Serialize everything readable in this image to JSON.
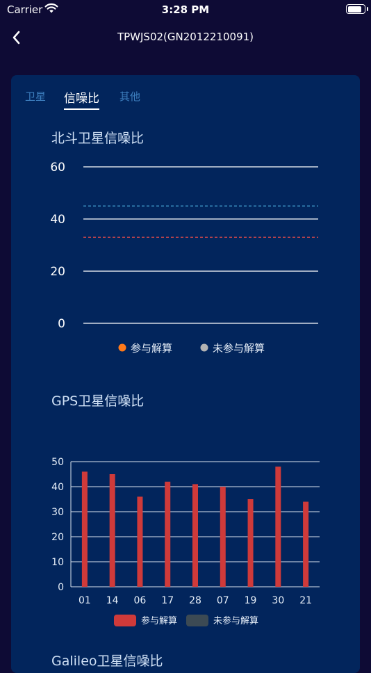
{
  "status_bar": {
    "carrier": "Carrier",
    "time": "3:28 PM",
    "battery_level": 0.9
  },
  "nav": {
    "title": "TPWJS02(GN2012210091)"
  },
  "tabs": [
    {
      "label": "卫星",
      "active": false
    },
    {
      "label": "信噪比",
      "active": true
    },
    {
      "label": "其他",
      "active": false
    }
  ],
  "beidou": {
    "title": "北斗卫星信噪比",
    "chart_data": {
      "type": "bar",
      "ylim": [
        0,
        60
      ],
      "y_ticks": [
        "0",
        "20",
        "40",
        "60"
      ],
      "reference_lines": [
        {
          "value": 45,
          "color": "#4aa8d8"
        },
        {
          "value": 33,
          "color": "#e04a4a"
        }
      ],
      "series": [],
      "legend": [
        {
          "label": "参与解算",
          "color": "#ff7a1a"
        },
        {
          "label": "未参与解算",
          "color": "#b3b3b3"
        }
      ]
    }
  },
  "gps": {
    "title": "GPS卫星信噪比",
    "chart_data": {
      "type": "bar",
      "ylim": [
        0,
        50
      ],
      "y_ticks": [
        "0",
        "10",
        "20",
        "30",
        "40",
        "50"
      ],
      "categories": [
        "01",
        "14",
        "06",
        "17",
        "28",
        "07",
        "19",
        "30",
        "21"
      ],
      "values": [
        46,
        45,
        36,
        42,
        41,
        40,
        35,
        48,
        34
      ],
      "bar_color": "#cf3a3a",
      "legend": [
        {
          "label": "参与解算",
          "color": "#cf3a3a"
        },
        {
          "label": "未参与解算",
          "color": "#3c4a54"
        }
      ]
    }
  },
  "galileo": {
    "title": "Galileo卫星信噪比"
  }
}
